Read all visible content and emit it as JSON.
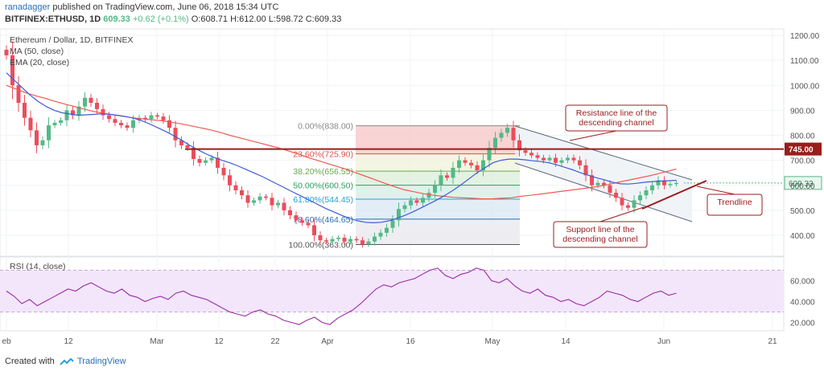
{
  "header": {
    "author": "ranadagger",
    "published_text": "published on TradingView.com, June 06, 2018 15:34 UTC",
    "symbol": "BITFINEX:ETHUSD, 1D",
    "price": "609.33",
    "change": "+0.62 (+0.1%)",
    "open": "O:608.71",
    "high": "H:612.00",
    "low": "L:598.72",
    "close": "C:609.33"
  },
  "legend": {
    "title": "Ethereum / Dollar, 1D, BITFINEX",
    "ma": "MA (50, close)",
    "ema": "EMA (20, close)"
  },
  "rsi_label": "RSI (14, close)",
  "footer": {
    "created": "Created with",
    "brand": "TradingView"
  },
  "colors": {
    "up": "#53b987",
    "down": "#eb4d5c",
    "ma": "#f15a52",
    "ema": "#3d5bd9",
    "resistance": "#9b1c1c",
    "rsi": "#9b2aa8",
    "rsi_band": "#f3e6fb"
  },
  "annotations": {
    "resistance": "Resistance line of the\ndescending channel",
    "support": "Support line of the\ndescending channel",
    "trendline": "Trendline"
  },
  "chart_data": {
    "type": "candlestick",
    "y_axis_ticks": [
      "1200.00",
      "1100.00",
      "1000.00",
      "900.00",
      "800.00",
      "700.00",
      "600.00",
      "500.00",
      "400.00"
    ],
    "x_axis_ticks": [
      "eb",
      "12",
      "Mar",
      "12",
      "22",
      "Apr",
      "16",
      "May",
      "14",
      "Jun",
      "21"
    ],
    "rsi_ticks": [
      "60.000",
      "40.000",
      "20.000"
    ],
    "price_labels": [
      "745.00",
      "609.33"
    ],
    "horizontal_level": 745,
    "fib_levels": [
      {
        "label": "0.00%(838.00)",
        "price": 838
      },
      {
        "label": "23.60%(725.90)",
        "price": 725.9
      },
      {
        "label": "38.20%(656.55)",
        "price": 656.55
      },
      {
        "label": "50.00%(600.50)",
        "price": 600.5
      },
      {
        "label": "61.80%(544.45)",
        "price": 544.45
      },
      {
        "label": "78.60%(464.65)",
        "price": 464.65
      },
      {
        "label": "100.00%(363.00)",
        "price": 363
      }
    ],
    "closes": [
      1120,
      1000,
      930,
      870,
      820,
      760,
      780,
      840,
      850,
      860,
      900,
      880,
      915,
      950,
      930,
      905,
      880,
      865,
      850,
      840,
      830,
      860,
      870,
      865,
      880,
      875,
      860,
      830,
      780,
      760,
      750,
      705,
      690,
      700,
      710,
      670,
      640,
      600,
      580,
      560,
      530,
      540,
      555,
      550,
      520,
      530,
      500,
      480,
      460,
      450,
      440,
      400,
      380,
      375,
      385,
      390,
      375,
      385,
      380,
      365,
      375,
      395,
      410,
      430,
      460,
      505,
      520,
      540,
      530,
      550,
      570,
      600,
      640,
      630,
      670,
      700,
      690,
      680,
      660,
      700,
      750,
      790,
      810,
      830,
      780,
      740,
      730,
      720,
      710,
      700,
      710,
      690,
      700,
      710,
      700,
      680,
      640,
      600,
      610,
      600,
      570,
      550,
      520,
      510,
      540,
      560,
      580,
      600,
      620,
      600,
      605,
      609.33
    ],
    "ma50": [
      1000,
      985,
      970,
      958,
      948,
      936,
      925,
      915,
      905,
      895,
      888,
      882,
      876,
      870,
      866,
      862,
      858,
      852,
      846,
      838,
      830,
      822,
      812,
      800,
      790,
      780,
      770,
      760,
      750,
      738,
      726,
      712,
      700,
      688,
      676,
      664,
      650,
      636,
      622,
      608,
      594,
      582,
      574,
      566,
      560,
      556,
      552,
      550,
      548,
      546,
      546,
      548,
      550,
      556,
      560,
      565,
      570,
      575,
      580,
      585,
      590,
      596,
      603,
      612,
      620,
      628,
      636,
      645,
      655,
      665
    ],
    "ema20": [
      1050,
      1020,
      990,
      960,
      935,
      915,
      900,
      890,
      885,
      880,
      882,
      884,
      886,
      884,
      880,
      875,
      868,
      858,
      845,
      830,
      815,
      798,
      780,
      760,
      742,
      726,
      712,
      700,
      690,
      678,
      664,
      650,
      636,
      620,
      604,
      588,
      572,
      556,
      540,
      524,
      508,
      494,
      480,
      468,
      458,
      452,
      450,
      452,
      458,
      468,
      480,
      494,
      510,
      526,
      542,
      560,
      580,
      602,
      626,
      650,
      670,
      690,
      700,
      705,
      705,
      702,
      698,
      695,
      690,
      682,
      672,
      662,
      650,
      640,
      630,
      622,
      612,
      606,
      605,
      608,
      612,
      615,
      617,
      618,
      620
    ],
    "rsi": [
      50,
      45,
      38,
      42,
      36,
      40,
      44,
      48,
      52,
      50,
      55,
      58,
      54,
      50,
      48,
      52,
      46,
      44,
      40,
      43,
      45,
      42,
      48,
      50,
      46,
      44,
      42,
      38,
      34,
      30,
      28,
      26,
      30,
      32,
      28,
      26,
      22,
      20,
      18,
      22,
      25,
      20,
      18,
      24,
      28,
      32,
      38,
      45,
      52,
      56,
      54,
      58,
      60,
      62,
      66,
      70,
      72,
      65,
      62,
      66,
      68,
      72,
      70,
      60,
      58,
      62,
      55,
      50,
      48,
      52,
      46,
      44,
      40,
      42,
      38,
      36,
      40,
      44,
      50,
      48,
      46,
      42,
      40,
      44,
      48,
      50,
      46,
      48
    ]
  }
}
